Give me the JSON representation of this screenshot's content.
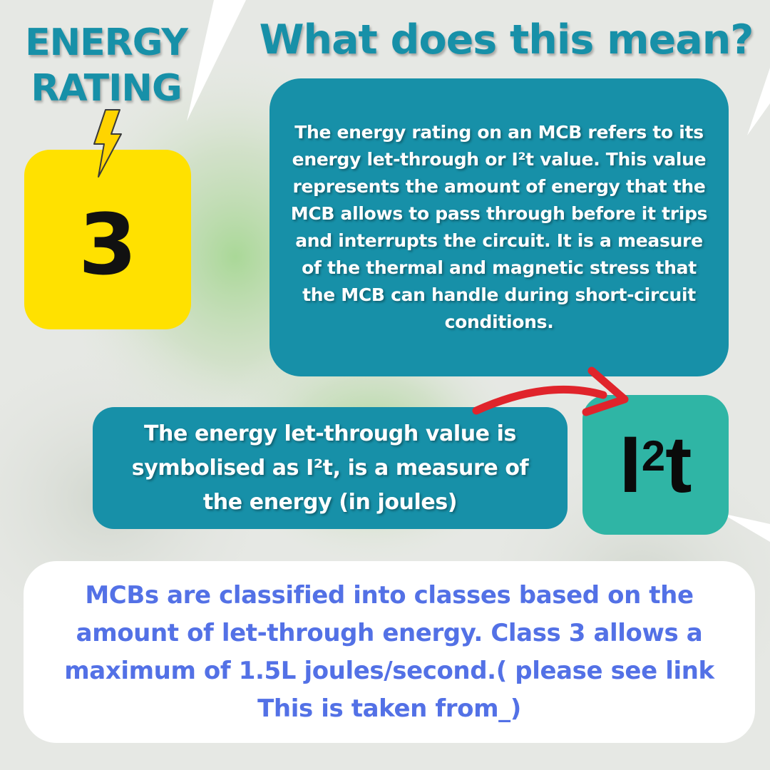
{
  "heading": {
    "energy_line1": "ENERGY",
    "energy_line2": "RATING",
    "title": "What does this mean?"
  },
  "rating": {
    "value": "3",
    "box_color": "#ffe100"
  },
  "explanation": {
    "text": "The energy rating on an MCB refers to its energy let-through or I²t value. This value represents the amount of energy that the MCB allows to pass through before it trips and interrupts the circuit. It is a measure of the thermal and magnetic stress that the MCB can handle during short-circuit conditions."
  },
  "symbol_note": {
    "text": "The energy let-through value is symbolised as I²t, is a measure of the energy (in joules)"
  },
  "symbol": {
    "base": "I",
    "exponent": "2",
    "suffix": "t"
  },
  "classification": {
    "text": "MCBs are classified into classes based on the amount of let-through energy. Class 3 allows a maximum of 1.5L joules/second.( please see link This is taken from_)"
  },
  "colors": {
    "teal": "#1790a8",
    "symbol_teal": "#2fb5a5",
    "yellow": "#ffe100",
    "blue_text": "#5371e6",
    "arrow_red": "#e0242b"
  },
  "icons": [
    "lightning-bolt-icon",
    "curved-arrow-icon"
  ]
}
